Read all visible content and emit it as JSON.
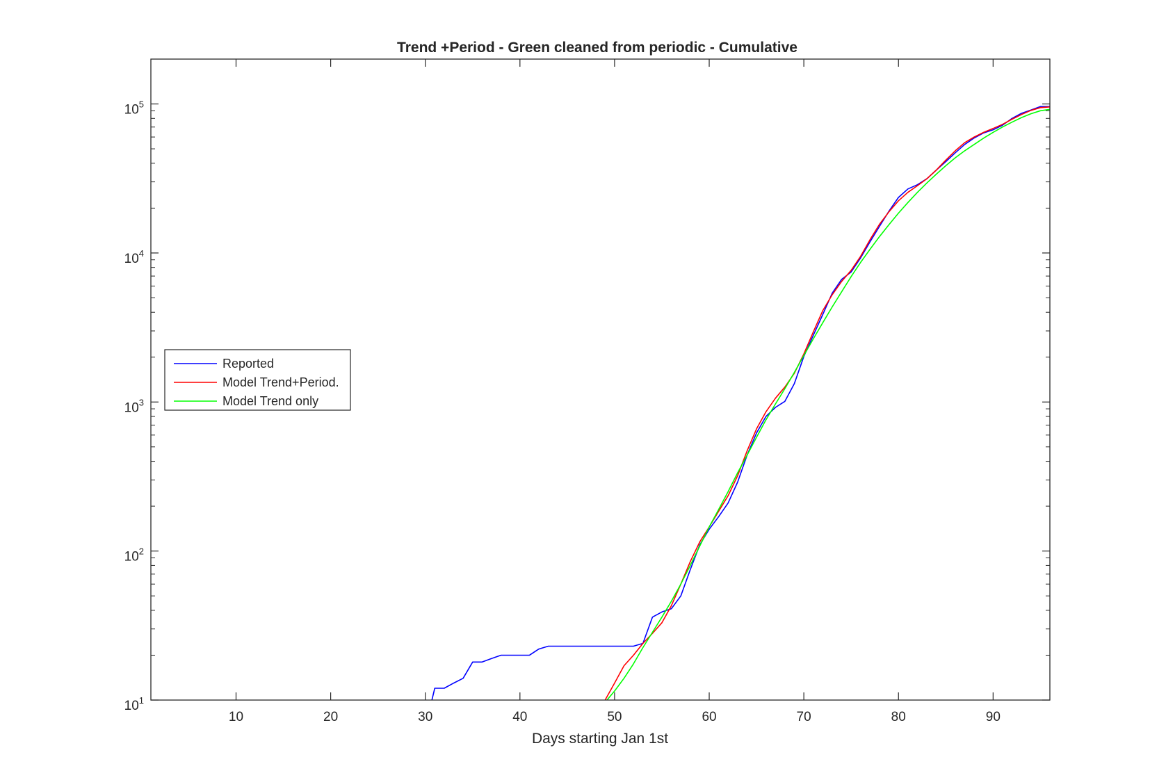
{
  "chart_data": {
    "type": "line",
    "title": "Trend +Period - Green cleaned from periodic - Cumulative",
    "xlabel": "Days starting Jan 1st",
    "ylabel": "",
    "xlim": [
      1,
      96
    ],
    "ylim": [
      10,
      200000
    ],
    "y_scale": "log",
    "grid": false,
    "legend_position": "left",
    "x_ticks": [
      10,
      20,
      30,
      40,
      50,
      60,
      70,
      80,
      90
    ],
    "y_ticks": [
      {
        "value": 10,
        "base": "10",
        "exp": "1"
      },
      {
        "value": 100,
        "base": "10",
        "exp": "2"
      },
      {
        "value": 1000,
        "base": "10",
        "exp": "3"
      },
      {
        "value": 10000,
        "base": "10",
        "exp": "4"
      },
      {
        "value": 100000,
        "base": "10",
        "exp": "5"
      }
    ],
    "series": [
      {
        "name": "Reported",
        "color": "#0000ff",
        "x": [
          30.7,
          31,
          32,
          33,
          34,
          35,
          36,
          37,
          38,
          39,
          40,
          41,
          42,
          43,
          44,
          45,
          46,
          47,
          48,
          49,
          50,
          51,
          52,
          53,
          54,
          55,
          56,
          57,
          58,
          59,
          60,
          61,
          62,
          63,
          64,
          65,
          66,
          67,
          68,
          69,
          70,
          71,
          72,
          73,
          74,
          75,
          76,
          77,
          78,
          79,
          80,
          81,
          82,
          83,
          84,
          85,
          86,
          87,
          88,
          89,
          90,
          91,
          92,
          93,
          94,
          95,
          96
        ],
        "y": [
          10,
          12,
          12,
          13,
          14,
          18,
          18,
          19,
          20,
          20,
          20,
          20,
          22,
          23,
          23,
          23,
          23,
          23,
          23,
          23,
          23,
          23,
          23,
          24,
          36,
          39,
          41,
          50,
          75,
          110,
          140,
          170,
          210,
          290,
          440,
          620,
          800,
          920,
          1010,
          1330,
          2020,
          2800,
          3860,
          5380,
          6660,
          7460,
          9280,
          11900,
          15100,
          19100,
          23600,
          26900,
          28700,
          31500,
          36000,
          41000,
          47000,
          53500,
          59100,
          63900,
          67000,
          72000,
          80000,
          86500,
          91000,
          96000,
          96000
        ]
      },
      {
        "name": "Model Trend+Period.",
        "color": "#ff0000",
        "x": [
          49,
          50,
          51,
          52,
          53,
          54,
          55,
          56,
          57,
          58,
          59,
          60,
          61,
          62,
          63,
          64,
          65,
          66,
          67,
          68,
          69,
          70,
          71,
          72,
          73,
          74,
          75,
          76,
          77,
          78,
          79,
          80,
          81,
          82,
          83,
          84,
          85,
          86,
          87,
          88,
          89,
          90,
          91,
          92,
          93,
          94,
          95,
          96
        ],
        "y": [
          10,
          13,
          17,
          20,
          24,
          28,
          33,
          43,
          60,
          85,
          115,
          145,
          185,
          235,
          320,
          470,
          660,
          860,
          1060,
          1260,
          1560,
          2100,
          2950,
          4100,
          5250,
          6450,
          7650,
          9500,
          12300,
          15600,
          18900,
          22400,
          25500,
          28300,
          31500,
          36000,
          42000,
          48500,
          55000,
          60000,
          64500,
          68500,
          73000,
          79000,
          85000,
          90500,
          94500,
          95500
        ]
      },
      {
        "name": "Model Trend only",
        "color": "#00ff00",
        "x": [
          49.2,
          50,
          51,
          52,
          53,
          54,
          55,
          56,
          57,
          58,
          59,
          60,
          61,
          62,
          63,
          64,
          65,
          66,
          67,
          68,
          69,
          70,
          71,
          72,
          73,
          74,
          75,
          76,
          77,
          78,
          79,
          80,
          81,
          82,
          83,
          84,
          85,
          86,
          87,
          88,
          89,
          90,
          91,
          92,
          93,
          94,
          95,
          96
        ],
        "y": [
          10,
          11.5,
          14,
          17.5,
          22.5,
          28.5,
          36,
          46,
          60,
          80,
          108,
          145,
          190,
          250,
          335,
          440,
          580,
          760,
          970,
          1230,
          1580,
          2050,
          2650,
          3400,
          4350,
          5500,
          6950,
          8650,
          10600,
          12900,
          15500,
          18500,
          21800,
          25500,
          29500,
          33800,
          38500,
          43500,
          48500,
          53500,
          59000,
          64500,
          70000,
          75500,
          81000,
          86000,
          90000,
          92000
        ]
      }
    ]
  }
}
